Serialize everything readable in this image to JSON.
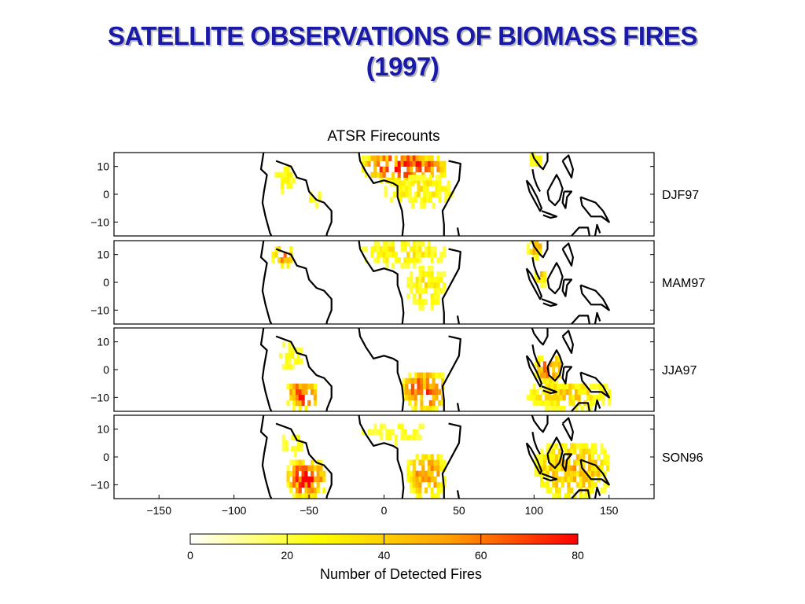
{
  "slide": {
    "title_line1": "SATELLITE OBSERVATIONS OF BIOMASS FIRES",
    "title_line2": "(1997)",
    "title_color": "#1a1aa8"
  },
  "chart_data": {
    "type": "heatmap",
    "title": "ATSR Firecounts",
    "x_ticks": [
      -150,
      -100,
      -50,
      0,
      50,
      100,
      150
    ],
    "y_ticks": [
      10,
      0,
      -10
    ],
    "xlim": [
      -180,
      180
    ],
    "ylim": [
      -15,
      15
    ],
    "grid": false,
    "panels": [
      {
        "label": "DJF97",
        "regions": [
          {
            "lon": [
              -15,
              40
            ],
            "lat": [
              4,
              14
            ],
            "intensity": 0.85
          },
          {
            "lon": [
              0,
              45
            ],
            "lat": [
              -5,
              6
            ],
            "intensity": 0.3
          },
          {
            "lon": [
              -75,
              -60
            ],
            "lat": [
              0,
              10
            ],
            "intensity": 0.25
          },
          {
            "lon": [
              -52,
              -40
            ],
            "lat": [
              -5,
              0
            ],
            "intensity": 0.25
          },
          {
            "lon": [
              95,
              105
            ],
            "lat": [
              8,
              15
            ],
            "intensity": 0.3
          }
        ]
      },
      {
        "label": "MAM97",
        "regions": [
          {
            "lon": [
              -15,
              40
            ],
            "lat": [
              5,
              14
            ],
            "intensity": 0.3
          },
          {
            "lon": [
              15,
              40
            ],
            "lat": [
              -10,
              5
            ],
            "intensity": 0.3
          },
          {
            "lon": [
              -75,
              -60
            ],
            "lat": [
              5,
              12
            ],
            "intensity": 0.6
          },
          {
            "lon": [
              95,
              105
            ],
            "lat": [
              8,
              15
            ],
            "intensity": 0.5
          },
          {
            "lon": [
              100,
              110
            ],
            "lat": [
              -2,
              4
            ],
            "intensity": 0.4
          }
        ]
      },
      {
        "label": "JJA97",
        "regions": [
          {
            "lon": [
              -65,
              -45
            ],
            "lat": [
              -15,
              -5
            ],
            "intensity": 0.8
          },
          {
            "lon": [
              -70,
              -55
            ],
            "lat": [
              -2,
              10
            ],
            "intensity": 0.2
          },
          {
            "lon": [
              12,
              40
            ],
            "lat": [
              -15,
              -2
            ],
            "intensity": 0.8
          },
          {
            "lon": [
              100,
              118
            ],
            "lat": [
              -5,
              4
            ],
            "intensity": 0.7
          },
          {
            "lon": [
              95,
              150
            ],
            "lat": [
              -15,
              -5
            ],
            "intensity": 0.4
          }
        ]
      },
      {
        "label": "SON96",
        "regions": [
          {
            "lon": [
              -65,
              -40
            ],
            "lat": [
              -15,
              -2
            ],
            "intensity": 0.9
          },
          {
            "lon": [
              -70,
              -55
            ],
            "lat": [
              0,
              8
            ],
            "intensity": 0.3
          },
          {
            "lon": [
              15,
              40
            ],
            "lat": [
              -15,
              0
            ],
            "intensity": 0.6
          },
          {
            "lon": [
              -15,
              30
            ],
            "lat": [
              4,
              12
            ],
            "intensity": 0.2
          },
          {
            "lon": [
              100,
              150
            ],
            "lat": [
              -15,
              4
            ],
            "intensity": 0.5
          }
        ]
      }
    ],
    "colorbar": {
      "label": "Number of Detected Fires",
      "ticks": [
        0,
        20,
        40,
        60,
        80
      ],
      "range": [
        0,
        80
      ],
      "colors": [
        "#ffffff",
        "#ffff00",
        "#ffa000",
        "#ff0000"
      ]
    }
  }
}
